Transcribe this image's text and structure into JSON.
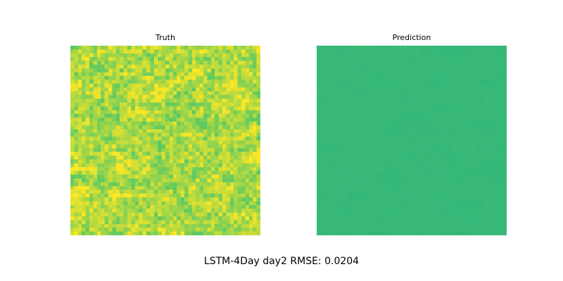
{
  "caption": "LSTM-4Day day2 RMSE: 0.0204",
  "chart_data": [
    {
      "type": "heatmap",
      "title": "Truth",
      "grid": "50x50",
      "colormap": "viridis",
      "approx_color_range": [
        "#5ec962",
        "#fde725"
      ],
      "axes_visible": false
    },
    {
      "type": "heatmap",
      "title": "Prediction",
      "grid": "50x50",
      "colormap": "viridis",
      "approx_color_range": [
        "#2fb47c",
        "#3fbc73"
      ],
      "axes_visible": false
    }
  ]
}
